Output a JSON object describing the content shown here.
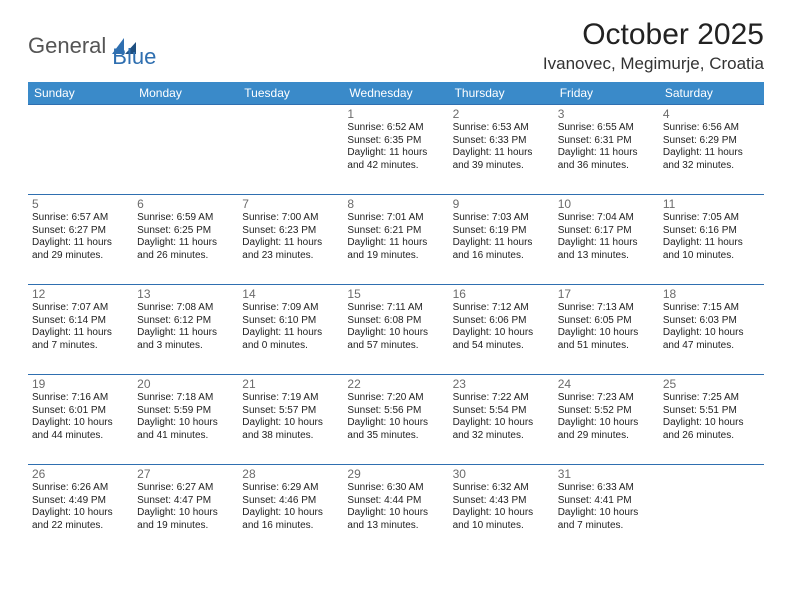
{
  "logo": {
    "part1": "General",
    "part2": "Blue"
  },
  "title": "October 2025",
  "location": "Ivanovec, Megimurje, Croatia",
  "colors": {
    "header_bg": "#3a8ac9",
    "row_border": "#2f6fb0",
    "daynum": "#6b6b6b",
    "text": "#222222",
    "logo_accent": "#2f6fb0"
  },
  "day_names": [
    "Sunday",
    "Monday",
    "Tuesday",
    "Wednesday",
    "Thursday",
    "Friday",
    "Saturday"
  ],
  "weeks": [
    [
      {
        "n": "",
        "sr": "",
        "ss": "",
        "dl": ""
      },
      {
        "n": "",
        "sr": "",
        "ss": "",
        "dl": ""
      },
      {
        "n": "",
        "sr": "",
        "ss": "",
        "dl": ""
      },
      {
        "n": "1",
        "sr": "Sunrise: 6:52 AM",
        "ss": "Sunset: 6:35 PM",
        "dl": "Daylight: 11 hours and 42 minutes."
      },
      {
        "n": "2",
        "sr": "Sunrise: 6:53 AM",
        "ss": "Sunset: 6:33 PM",
        "dl": "Daylight: 11 hours and 39 minutes."
      },
      {
        "n": "3",
        "sr": "Sunrise: 6:55 AM",
        "ss": "Sunset: 6:31 PM",
        "dl": "Daylight: 11 hours and 36 minutes."
      },
      {
        "n": "4",
        "sr": "Sunrise: 6:56 AM",
        "ss": "Sunset: 6:29 PM",
        "dl": "Daylight: 11 hours and 32 minutes."
      }
    ],
    [
      {
        "n": "5",
        "sr": "Sunrise: 6:57 AM",
        "ss": "Sunset: 6:27 PM",
        "dl": "Daylight: 11 hours and 29 minutes."
      },
      {
        "n": "6",
        "sr": "Sunrise: 6:59 AM",
        "ss": "Sunset: 6:25 PM",
        "dl": "Daylight: 11 hours and 26 minutes."
      },
      {
        "n": "7",
        "sr": "Sunrise: 7:00 AM",
        "ss": "Sunset: 6:23 PM",
        "dl": "Daylight: 11 hours and 23 minutes."
      },
      {
        "n": "8",
        "sr": "Sunrise: 7:01 AM",
        "ss": "Sunset: 6:21 PM",
        "dl": "Daylight: 11 hours and 19 minutes."
      },
      {
        "n": "9",
        "sr": "Sunrise: 7:03 AM",
        "ss": "Sunset: 6:19 PM",
        "dl": "Daylight: 11 hours and 16 minutes."
      },
      {
        "n": "10",
        "sr": "Sunrise: 7:04 AM",
        "ss": "Sunset: 6:17 PM",
        "dl": "Daylight: 11 hours and 13 minutes."
      },
      {
        "n": "11",
        "sr": "Sunrise: 7:05 AM",
        "ss": "Sunset: 6:16 PM",
        "dl": "Daylight: 11 hours and 10 minutes."
      }
    ],
    [
      {
        "n": "12",
        "sr": "Sunrise: 7:07 AM",
        "ss": "Sunset: 6:14 PM",
        "dl": "Daylight: 11 hours and 7 minutes."
      },
      {
        "n": "13",
        "sr": "Sunrise: 7:08 AM",
        "ss": "Sunset: 6:12 PM",
        "dl": "Daylight: 11 hours and 3 minutes."
      },
      {
        "n": "14",
        "sr": "Sunrise: 7:09 AM",
        "ss": "Sunset: 6:10 PM",
        "dl": "Daylight: 11 hours and 0 minutes."
      },
      {
        "n": "15",
        "sr": "Sunrise: 7:11 AM",
        "ss": "Sunset: 6:08 PM",
        "dl": "Daylight: 10 hours and 57 minutes."
      },
      {
        "n": "16",
        "sr": "Sunrise: 7:12 AM",
        "ss": "Sunset: 6:06 PM",
        "dl": "Daylight: 10 hours and 54 minutes."
      },
      {
        "n": "17",
        "sr": "Sunrise: 7:13 AM",
        "ss": "Sunset: 6:05 PM",
        "dl": "Daylight: 10 hours and 51 minutes."
      },
      {
        "n": "18",
        "sr": "Sunrise: 7:15 AM",
        "ss": "Sunset: 6:03 PM",
        "dl": "Daylight: 10 hours and 47 minutes."
      }
    ],
    [
      {
        "n": "19",
        "sr": "Sunrise: 7:16 AM",
        "ss": "Sunset: 6:01 PM",
        "dl": "Daylight: 10 hours and 44 minutes."
      },
      {
        "n": "20",
        "sr": "Sunrise: 7:18 AM",
        "ss": "Sunset: 5:59 PM",
        "dl": "Daylight: 10 hours and 41 minutes."
      },
      {
        "n": "21",
        "sr": "Sunrise: 7:19 AM",
        "ss": "Sunset: 5:57 PM",
        "dl": "Daylight: 10 hours and 38 minutes."
      },
      {
        "n": "22",
        "sr": "Sunrise: 7:20 AM",
        "ss": "Sunset: 5:56 PM",
        "dl": "Daylight: 10 hours and 35 minutes."
      },
      {
        "n": "23",
        "sr": "Sunrise: 7:22 AM",
        "ss": "Sunset: 5:54 PM",
        "dl": "Daylight: 10 hours and 32 minutes."
      },
      {
        "n": "24",
        "sr": "Sunrise: 7:23 AM",
        "ss": "Sunset: 5:52 PM",
        "dl": "Daylight: 10 hours and 29 minutes."
      },
      {
        "n": "25",
        "sr": "Sunrise: 7:25 AM",
        "ss": "Sunset: 5:51 PM",
        "dl": "Daylight: 10 hours and 26 minutes."
      }
    ],
    [
      {
        "n": "26",
        "sr": "Sunrise: 6:26 AM",
        "ss": "Sunset: 4:49 PM",
        "dl": "Daylight: 10 hours and 22 minutes."
      },
      {
        "n": "27",
        "sr": "Sunrise: 6:27 AM",
        "ss": "Sunset: 4:47 PM",
        "dl": "Daylight: 10 hours and 19 minutes."
      },
      {
        "n": "28",
        "sr": "Sunrise: 6:29 AM",
        "ss": "Sunset: 4:46 PM",
        "dl": "Daylight: 10 hours and 16 minutes."
      },
      {
        "n": "29",
        "sr": "Sunrise: 6:30 AM",
        "ss": "Sunset: 4:44 PM",
        "dl": "Daylight: 10 hours and 13 minutes."
      },
      {
        "n": "30",
        "sr": "Sunrise: 6:32 AM",
        "ss": "Sunset: 4:43 PM",
        "dl": "Daylight: 10 hours and 10 minutes."
      },
      {
        "n": "31",
        "sr": "Sunrise: 6:33 AM",
        "ss": "Sunset: 4:41 PM",
        "dl": "Daylight: 10 hours and 7 minutes."
      },
      {
        "n": "",
        "sr": "",
        "ss": "",
        "dl": ""
      }
    ]
  ]
}
